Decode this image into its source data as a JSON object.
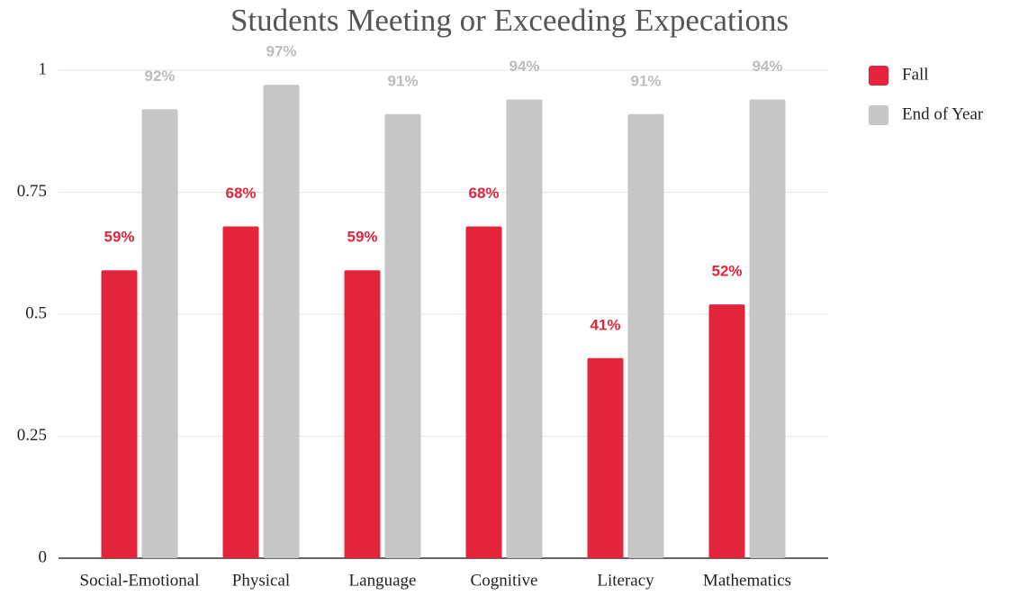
{
  "chart_data": {
    "type": "bar",
    "title": "Students Meeting or Exceeding Expecations",
    "categories": [
      "Social-Emotional",
      "Physical",
      "Language",
      "Cognitive",
      "Literacy",
      "Mathematics"
    ],
    "series": [
      {
        "name": "Fall",
        "color": "#e3243b",
        "values": [
          0.59,
          0.68,
          0.59,
          0.68,
          0.41,
          0.52
        ],
        "value_labels": [
          "59%",
          "68%",
          "59%",
          "68%",
          "41%",
          "52%"
        ]
      },
      {
        "name": "End of Year",
        "color": "#c6c6c6",
        "values": [
          0.92,
          0.97,
          0.91,
          0.94,
          0.91,
          0.94
        ],
        "value_labels": [
          "92%",
          "97%",
          "91%",
          "94%",
          "91%",
          "94%"
        ]
      }
    ],
    "ylim": [
      0,
      1
    ],
    "yticks": [
      0,
      0.25,
      0.5,
      0.75,
      1
    ],
    "grid": true,
    "legend": "right"
  }
}
